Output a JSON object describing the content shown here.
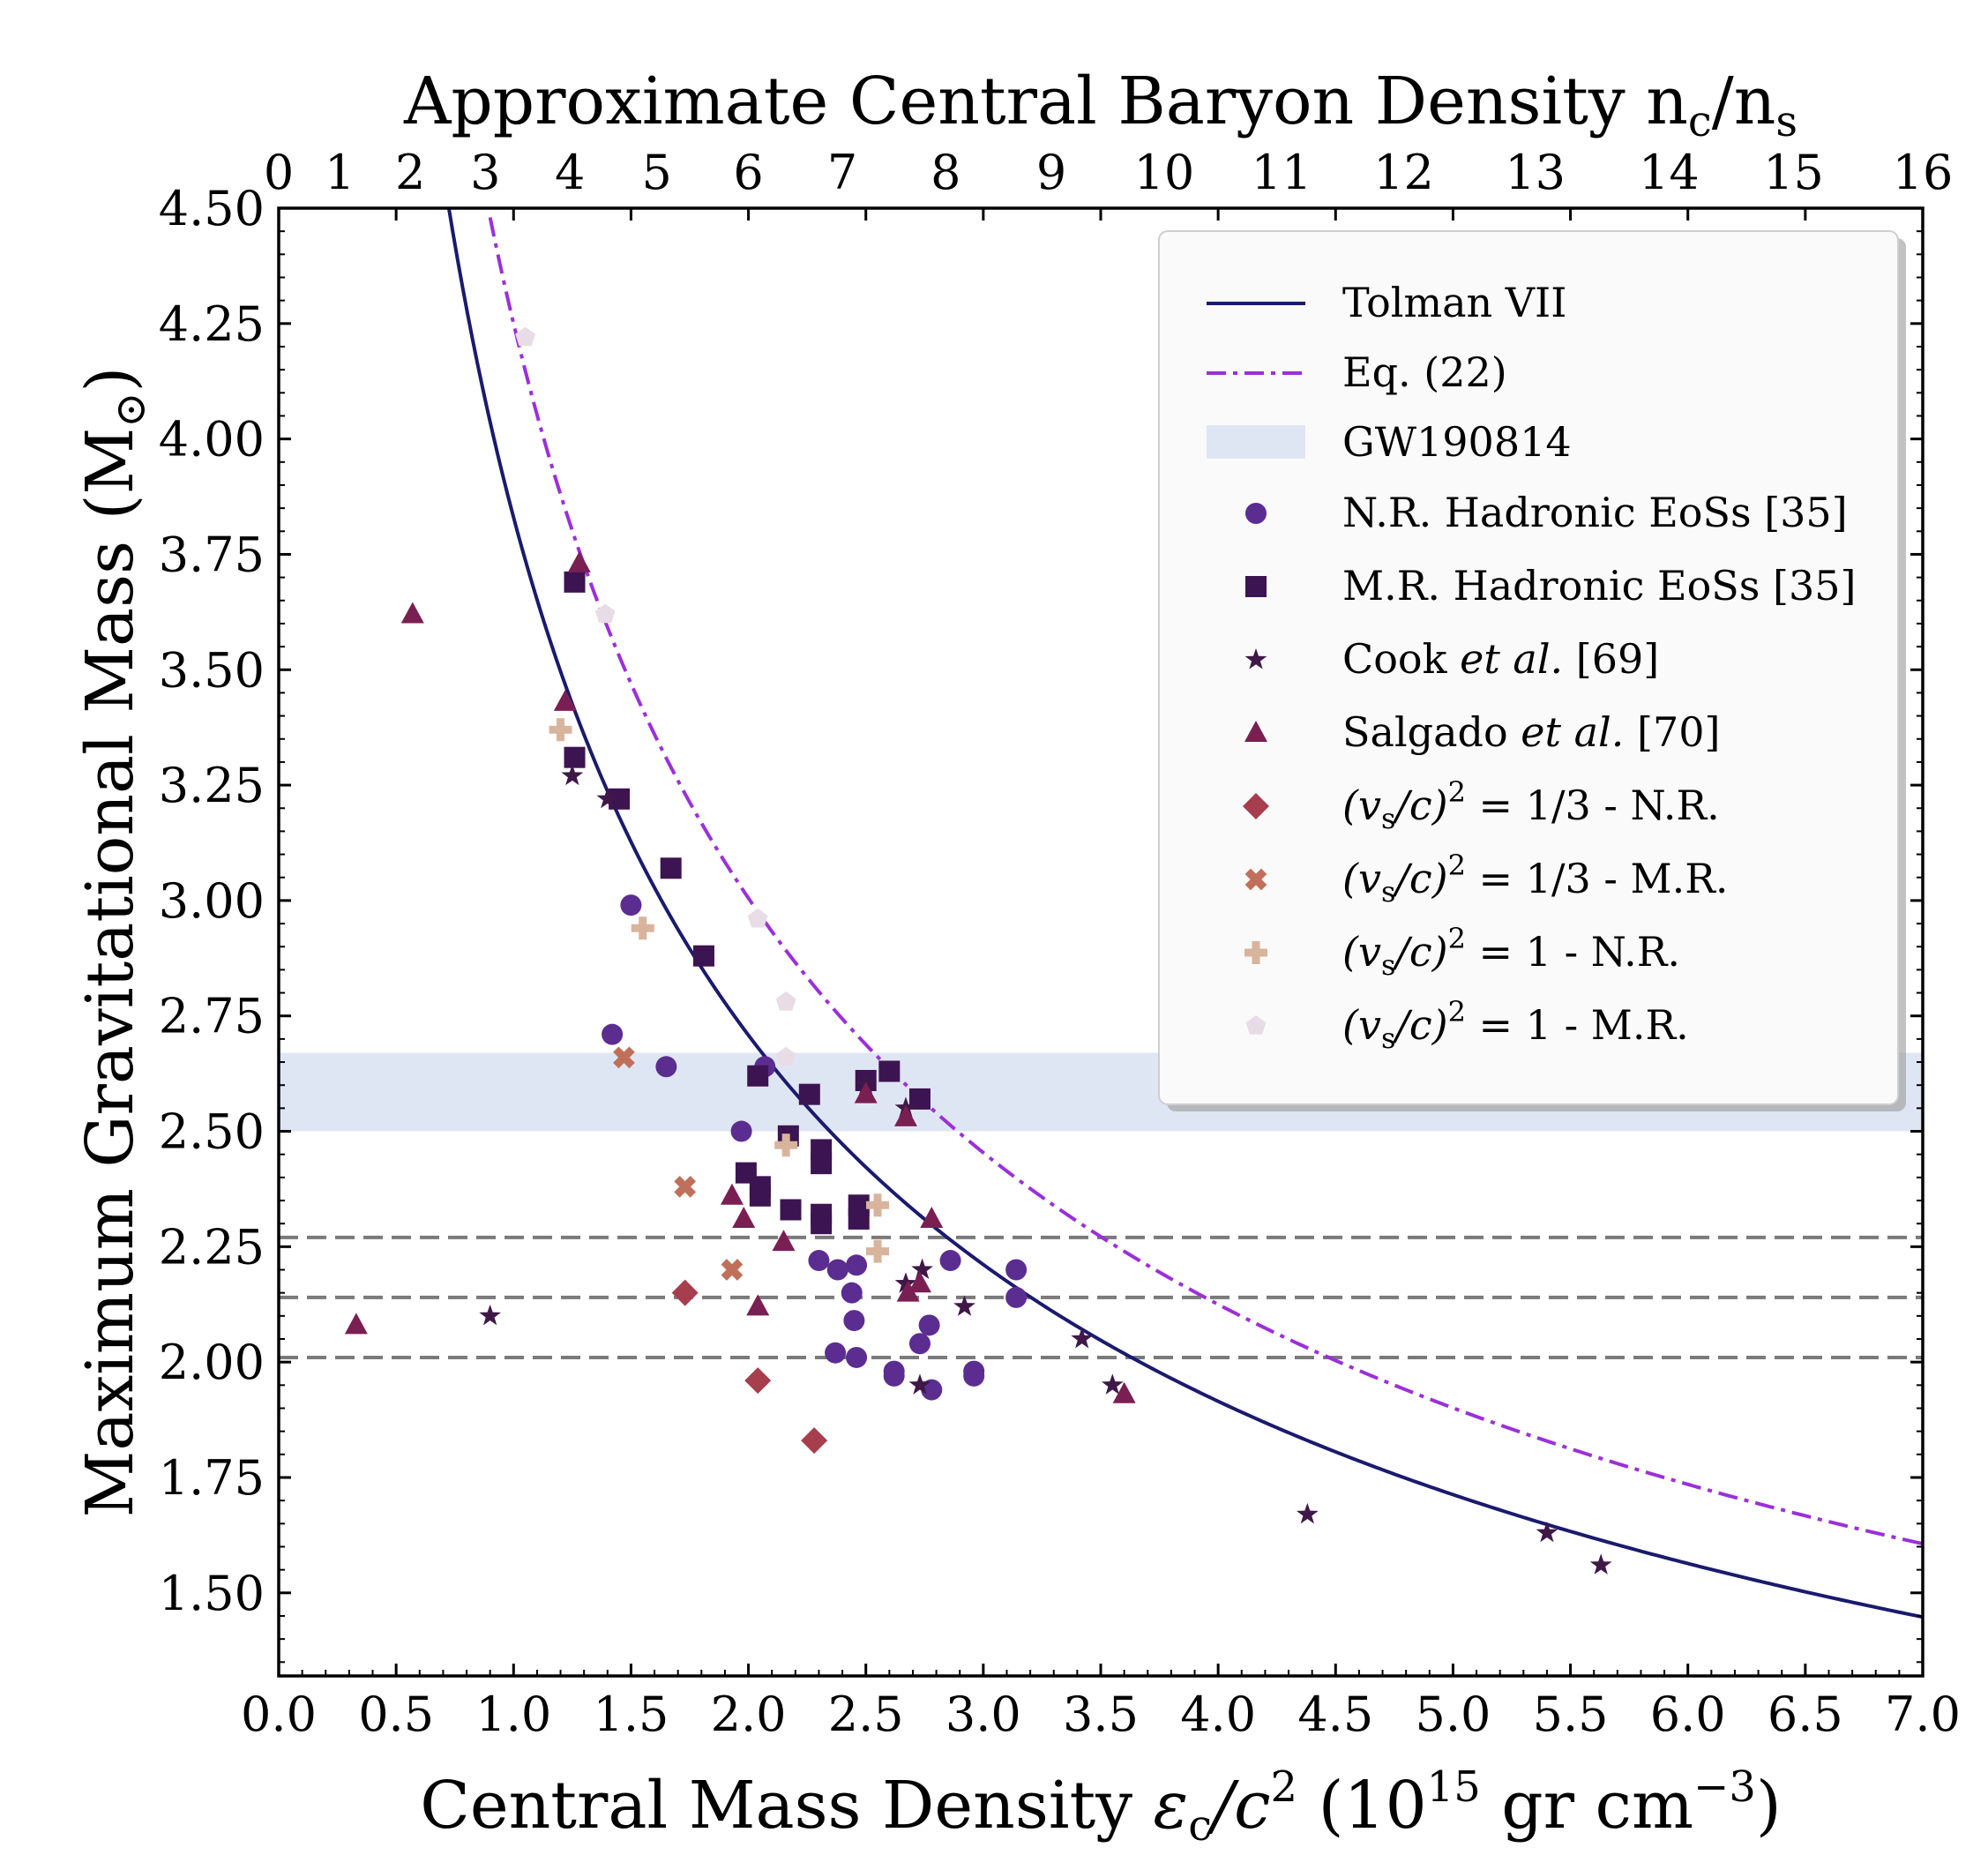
{
  "chart_data": {
    "type": "scatter",
    "title": "",
    "xlabel": "Central Mass Density ε_c/c² (10¹⁵ gr cm⁻³)",
    "ylabel": "Maximum Gravitational Mass (M_⊙)",
    "top_xlabel": "Approximate Central Baryon Density n_c/n_s",
    "xlim": [
      0.0,
      7.0
    ],
    "ylim": [
      1.32,
      4.5
    ],
    "x_ticks": [
      "0.0",
      "0.5",
      "1.0",
      "1.5",
      "2.0",
      "2.5",
      "3.0",
      "3.5",
      "4.0",
      "4.5",
      "5.0",
      "5.5",
      "6.0",
      "6.5",
      "7.0"
    ],
    "x_tick_values": [
      0,
      0.5,
      1,
      1.5,
      2,
      2.5,
      3,
      3.5,
      4,
      4.5,
      5,
      5.5,
      6,
      6.5,
      7
    ],
    "y_ticks": [
      "1.50",
      "1.75",
      "2.00",
      "2.25",
      "2.50",
      "2.75",
      "3.00",
      "3.25",
      "3.50",
      "3.75",
      "4.00",
      "4.25",
      "4.50"
    ],
    "y_tick_values": [
      1.5,
      1.75,
      2.0,
      2.25,
      2.5,
      2.75,
      3.0,
      3.25,
      3.5,
      3.75,
      4.0,
      4.25,
      4.5
    ],
    "top_ticks": [
      "0",
      "1",
      "2",
      "3",
      "4",
      "5",
      "6",
      "7",
      "8",
      "9",
      "10",
      "11",
      "12",
      "13",
      "14",
      "15",
      "16"
    ],
    "top_tick_positions_x": [
      0.0,
      0.26,
      0.56,
      0.88,
      1.24,
      1.61,
      2.0,
      2.4,
      2.84,
      3.29,
      3.77,
      4.27,
      4.79,
      5.35,
      5.92,
      6.45,
      7.0
    ],
    "legend_position": "top-right",
    "grid": false,
    "colors": {
      "tolman": "#1a1a6e",
      "eq22": "#9b30d9",
      "gw_band": "#dfe6f3",
      "nr_hadronic": "#5b2d91",
      "mr_hadronic": "#3d1452",
      "cook": "#3f1848",
      "salgado": "#7a1f52",
      "vs13_nr": "#a63e4e",
      "vs13_mr": "#c0705a",
      "vs1_nr": "#d9b49d",
      "vs1_mr": "#e8dde6",
      "hlines": "#7a7a7a"
    },
    "band": {
      "name": "GW190814",
      "y": [
        2.5,
        2.67
      ]
    },
    "hlines": [
      2.27,
      2.14,
      2.01
    ],
    "curves": [
      {
        "name": "Tolman VII",
        "style": "solid",
        "coef": 3.83,
        "x_range": [
          0.7,
          7.0
        ]
      },
      {
        "name": "Eq. (22)",
        "style": "dashdot",
        "coef": 4.25,
        "x_range": [
          0.9,
          7.0
        ]
      }
    ],
    "series": [
      {
        "name": "N.R. Hadronic EoSs [35]",
        "marker": "circle",
        "color_key": "nr_hadronic",
        "points": [
          [
            1.42,
            2.71
          ],
          [
            1.5,
            2.99
          ],
          [
            1.65,
            2.64
          ],
          [
            1.97,
            2.5
          ],
          [
            2.07,
            2.64
          ],
          [
            2.3,
            2.22
          ],
          [
            2.37,
            2.02
          ],
          [
            2.38,
            2.2
          ],
          [
            2.44,
            2.15
          ],
          [
            2.45,
            2.09
          ],
          [
            2.46,
            2.21
          ],
          [
            2.46,
            2.01
          ],
          [
            2.62,
            1.98
          ],
          [
            2.62,
            1.97
          ],
          [
            2.73,
            2.04
          ],
          [
            2.77,
            2.08
          ],
          [
            2.78,
            1.94
          ],
          [
            2.86,
            2.22
          ],
          [
            2.96,
            1.98
          ],
          [
            2.96,
            1.97
          ],
          [
            3.14,
            2.2
          ],
          [
            3.14,
            2.14
          ]
        ]
      },
      {
        "name": "M.R. Hadronic EoSs [35]",
        "marker": "square",
        "color_key": "mr_hadronic",
        "points": [
          [
            1.26,
            3.69
          ],
          [
            1.26,
            3.31
          ],
          [
            1.45,
            3.22
          ],
          [
            1.67,
            3.07
          ],
          [
            1.81,
            2.88
          ],
          [
            1.99,
            2.41
          ],
          [
            2.04,
            2.62
          ],
          [
            2.05,
            2.38
          ],
          [
            2.05,
            2.36
          ],
          [
            2.17,
            2.49
          ],
          [
            2.18,
            2.33
          ],
          [
            2.26,
            2.58
          ],
          [
            2.31,
            2.46
          ],
          [
            2.31,
            2.43
          ],
          [
            2.31,
            2.32
          ],
          [
            2.31,
            2.3
          ],
          [
            2.47,
            2.34
          ],
          [
            2.47,
            2.31
          ],
          [
            2.5,
            2.61
          ],
          [
            2.6,
            2.63
          ],
          [
            2.73,
            2.57
          ]
        ]
      },
      {
        "name": "Cook et al. [69]",
        "marker": "star",
        "color_key": "cook",
        "points": [
          [
            0.9,
            2.1
          ],
          [
            1.25,
            3.27
          ],
          [
            1.4,
            3.22
          ],
          [
            2.5,
            2.6
          ],
          [
            2.67,
            2.17
          ],
          [
            2.67,
            2.55
          ],
          [
            2.73,
            1.95
          ],
          [
            2.74,
            2.2
          ],
          [
            2.92,
            2.12
          ],
          [
            3.42,
            2.05
          ],
          [
            3.55,
            1.95
          ],
          [
            4.38,
            1.67
          ],
          [
            5.4,
            1.63
          ],
          [
            5.63,
            1.56
          ]
        ]
      },
      {
        "name": "Salgado et al. [70]",
        "marker": "triangle",
        "color_key": "salgado",
        "points": [
          [
            0.33,
            2.08
          ],
          [
            0.57,
            3.62
          ],
          [
            1.22,
            3.43
          ],
          [
            1.28,
            3.73
          ],
          [
            1.93,
            2.36
          ],
          [
            1.98,
            2.31
          ],
          [
            2.04,
            2.12
          ],
          [
            2.15,
            2.26
          ],
          [
            2.5,
            2.58
          ],
          [
            2.67,
            2.53
          ],
          [
            2.68,
            2.15
          ],
          [
            2.73,
            2.17
          ],
          [
            2.78,
            2.31
          ],
          [
            3.6,
            1.93
          ]
        ]
      },
      {
        "name": "(v_s/c)² = 1/3 - N.R.",
        "marker": "diamond",
        "color_key": "vs13_nr",
        "points": [
          [
            1.73,
            2.15
          ],
          [
            2.04,
            1.96
          ],
          [
            2.28,
            1.83
          ]
        ]
      },
      {
        "name": "(v_s/c)² = 1/3 - M.R.",
        "marker": "cross",
        "color_key": "vs13_mr",
        "points": [
          [
            1.47,
            2.66
          ],
          [
            1.73,
            2.38
          ],
          [
            1.93,
            2.2
          ]
        ]
      },
      {
        "name": "(v_s/c)² = 1 - N.R.",
        "marker": "plus",
        "color_key": "vs1_nr",
        "points": [
          [
            1.2,
            3.37
          ],
          [
            1.55,
            2.94
          ],
          [
            2.16,
            2.47
          ],
          [
            2.55,
            2.34
          ],
          [
            2.55,
            2.24
          ]
        ]
      },
      {
        "name": "(v_s/c)² = 1 - M.R.",
        "marker": "pentagon",
        "color_key": "vs1_mr",
        "points": [
          [
            1.05,
            4.22
          ],
          [
            1.39,
            3.62
          ],
          [
            2.04,
            2.96
          ],
          [
            2.16,
            2.78
          ],
          [
            2.16,
            2.66
          ]
        ]
      }
    ]
  },
  "legend": {
    "tolman": "Tolman VII",
    "eq22": "Eq. (22)",
    "gw": "GW190814",
    "nr": "N.R. Hadronic EoSs [35]",
    "mr": "M.R. Hadronic EoSs [35]",
    "cook_name": "Cook ",
    "cook_etal": "et al.",
    "cook_ref": " [69]",
    "salgado_name": "Salgado ",
    "salgado_etal": "et al.",
    "salgado_ref": " [70]",
    "vs13nr": "(v",
    "vs13nr_sub": "s",
    "vs13nr_mid": "/c)",
    "vs13nr_sup": "2",
    "vs13nr_tail": " = 1/3 - N.R.",
    "vs13mr": "(v",
    "vs13mr_sub": "s",
    "vs13mr_mid": "/c)",
    "vs13mr_sup": "2",
    "vs13mr_tail": " = 1/3 - M.R.",
    "vs1nr": "(v",
    "vs1nr_sub": "s",
    "vs1nr_mid": "/c)",
    "vs1nr_sup": "2",
    "vs1nr_tail": " = 1 - N.R.",
    "vs1mr": "(v",
    "vs1mr_sub": "s",
    "vs1mr_mid": "/c)",
    "vs1mr_sup": "2",
    "vs1mr_tail": " = 1 - M.R."
  },
  "axis_text": {
    "bottom_main": "Central Mass Density ",
    "bottom_eps": "ε",
    "bottom_eps_sub": "c",
    "bottom_slash": "/c",
    "bottom_slash_sup": "2",
    "bottom_unit_open": " (10",
    "bottom_unit_sup": "15",
    "bottom_unit_mid": " gr cm",
    "bottom_unit_sup2": "−3",
    "bottom_unit_close": ")",
    "top_main": "Approximate Central Baryon Density n",
    "top_sub1": "c",
    "top_slash": "/n",
    "top_sub2": "s",
    "left_main": "Maximum Gravitational Mass (M",
    "left_sub": "⊙",
    "left_close": ")"
  }
}
